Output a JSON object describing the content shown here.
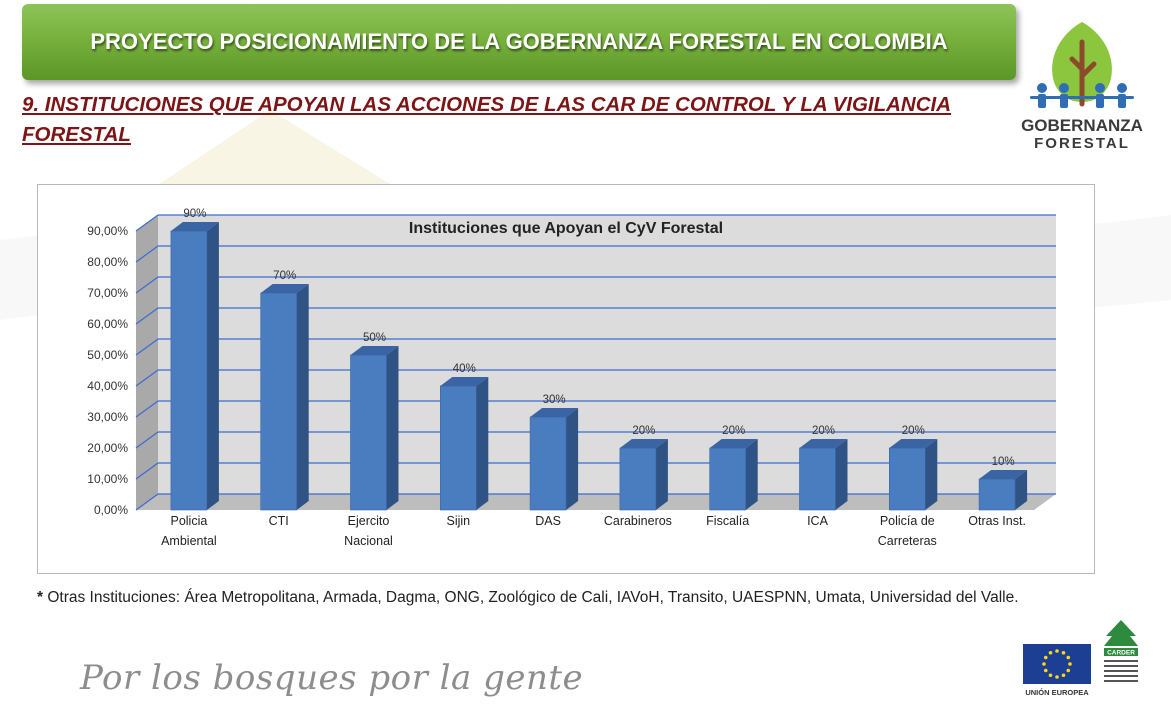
{
  "header": {
    "banner_title": "PROYECTO POSICIONAMIENTO DE LA GOBERNANZA FORESTAL EN COLOMBIA",
    "section_title": "9. INSTITUCIONES QUE APOYAN LAS ACCIONES DE LAS CAR DE CONTROL Y LA VIGILANCIA FORESTAL"
  },
  "logo": {
    "line1": "GOBERNANZA",
    "line2": "FORESTAL"
  },
  "colors": {
    "bar_front": "#4a7cc0",
    "bar_side": "#2f5384",
    "bar_top": "#3a64a3",
    "grid": "#3a6bd1",
    "banner": "#78b13d",
    "title_red": "#7d1416"
  },
  "chart_data": {
    "type": "bar",
    "title": "Instituciones que Apoyan el CyV Forestal",
    "categories": [
      [
        "Policia",
        "Ambiental"
      ],
      [
        "CTI"
      ],
      [
        "Ejercito",
        "Nacional"
      ],
      [
        "Sijin"
      ],
      [
        "DAS"
      ],
      [
        "Carabineros"
      ],
      [
        "Fiscalía"
      ],
      [
        "ICA"
      ],
      [
        "Policía de",
        "Carreteras"
      ],
      [
        "Otras Inst."
      ]
    ],
    "values": [
      90,
      70,
      50,
      40,
      30,
      20,
      20,
      20,
      20,
      10
    ],
    "data_labels": [
      "90%",
      "70%",
      "50%",
      "40%",
      "30%",
      "20%",
      "20%",
      "20%",
      "20%",
      "10%"
    ],
    "yticks": [
      "0,00%",
      "10,00%",
      "20,00%",
      "30,00%",
      "40,00%",
      "50,00%",
      "60,00%",
      "70,00%",
      "80,00%",
      "90,00%"
    ],
    "ylim": [
      0,
      90
    ],
    "grid": true,
    "legend": "none",
    "three_d": true
  },
  "footnote": {
    "marker": "*",
    "text": " Otras Instituciones: Área Metropolitana, Armada, Dagma, ONG, Zoológico de Cali, IAVoH, Transito, UAESPNN, Umata, Universidad del Valle."
  },
  "slogan": "Por los bosques por la gente",
  "eu_logo_text": "UNIÓN EUROPEA",
  "carder_logo_text": "CARDER"
}
